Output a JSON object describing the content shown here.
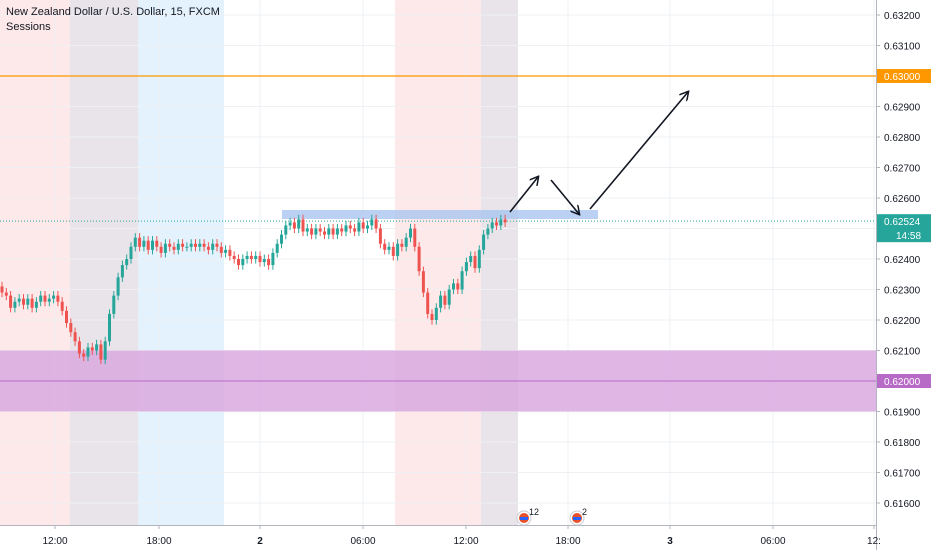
{
  "chart_data": {
    "type": "candlestick",
    "title": "New Zealand Dollar / U.S. Dollar, 15, FXCM",
    "indicator": "Sessions",
    "ylim": [
      0.6153,
      0.6328
    ],
    "y_ticks": [
      "0.61600",
      "0.61700",
      "0.61800",
      "0.61900",
      "0.62000",
      "0.62100",
      "0.62200",
      "0.62300",
      "0.62400",
      "0.62500",
      "0.62600",
      "0.62700",
      "0.62800",
      "0.62900",
      "0.63000",
      "0.63100",
      "0.63200"
    ],
    "x_ticks": [
      "12:00",
      "18:00",
      "2",
      "06:00",
      "12:00",
      "18:00",
      "3",
      "06:00",
      "12:"
    ],
    "price_labels": {
      "resistance": "0.63000",
      "support": "0.62000",
      "current": "0.62524",
      "countdown": "14:58"
    },
    "levels": {
      "resistance": 0.63,
      "support": 0.62,
      "current": 0.62524
    },
    "support_zone": [
      0.619,
      0.621
    ],
    "resistance_zone": [
      0.62524,
      0.62548
    ],
    "colors": {
      "up": "#26a69a",
      "down": "#ef5350",
      "resistance_line": "#ff9800",
      "support_zone": "#d9a9df",
      "support_line": "#b76bc6",
      "current_line": "#26a69a",
      "session_red": "#fde9e9",
      "session_gray": "#e8e4ea",
      "session_blue": "#e3f2fd",
      "zone_blue": "#a9c5f0",
      "arrows": "#131722"
    },
    "events": [
      {
        "label": "12"
      },
      {
        "label": "2"
      }
    ],
    "candles_close": [
      0.6229,
      0.6228,
      0.6224,
      0.6226,
      0.6227,
      0.6225,
      0.6227,
      0.6224,
      0.6226,
      0.6228,
      0.6226,
      0.6227,
      0.6228,
      0.6226,
      0.6223,
      0.6219,
      0.6216,
      0.6213,
      0.6209,
      0.6208,
      0.6211,
      0.621,
      0.6212,
      0.6207,
      0.6213,
      0.6222,
      0.6228,
      0.6234,
      0.6238,
      0.624,
      0.6244,
      0.6247,
      0.6244,
      0.6246,
      0.6243,
      0.6246,
      0.6244,
      0.6242,
      0.6245,
      0.6244,
      0.6243,
      0.6245,
      0.6244,
      0.6244,
      0.6245,
      0.6244,
      0.6245,
      0.6244,
      0.6243,
      0.6245,
      0.6244,
      0.6242,
      0.6243,
      0.6241,
      0.624,
      0.6238,
      0.624,
      0.6241,
      0.624,
      0.6241,
      0.6239,
      0.624,
      0.6238,
      0.6242,
      0.6245,
      0.6248,
      0.6251,
      0.6252,
      0.625,
      0.6253,
      0.6249,
      0.625,
      0.6248,
      0.625,
      0.6249,
      0.6248,
      0.625,
      0.6248,
      0.625,
      0.6249,
      0.6251,
      0.625,
      0.6249,
      0.6252,
      0.625,
      0.6251,
      0.6253,
      0.625,
      0.6245,
      0.6243,
      0.6244,
      0.6241,
      0.6245,
      0.6244,
      0.6247,
      0.625,
      0.6244,
      0.6236,
      0.6229,
      0.6222,
      0.622,
      0.6224,
      0.6228,
      0.6225,
      0.623,
      0.6232,
      0.623,
      0.6236,
      0.6239,
      0.6241,
      0.6237,
      0.6243,
      0.6248,
      0.625,
      0.6252,
      0.6251,
      0.6253,
      0.6252
    ]
  }
}
